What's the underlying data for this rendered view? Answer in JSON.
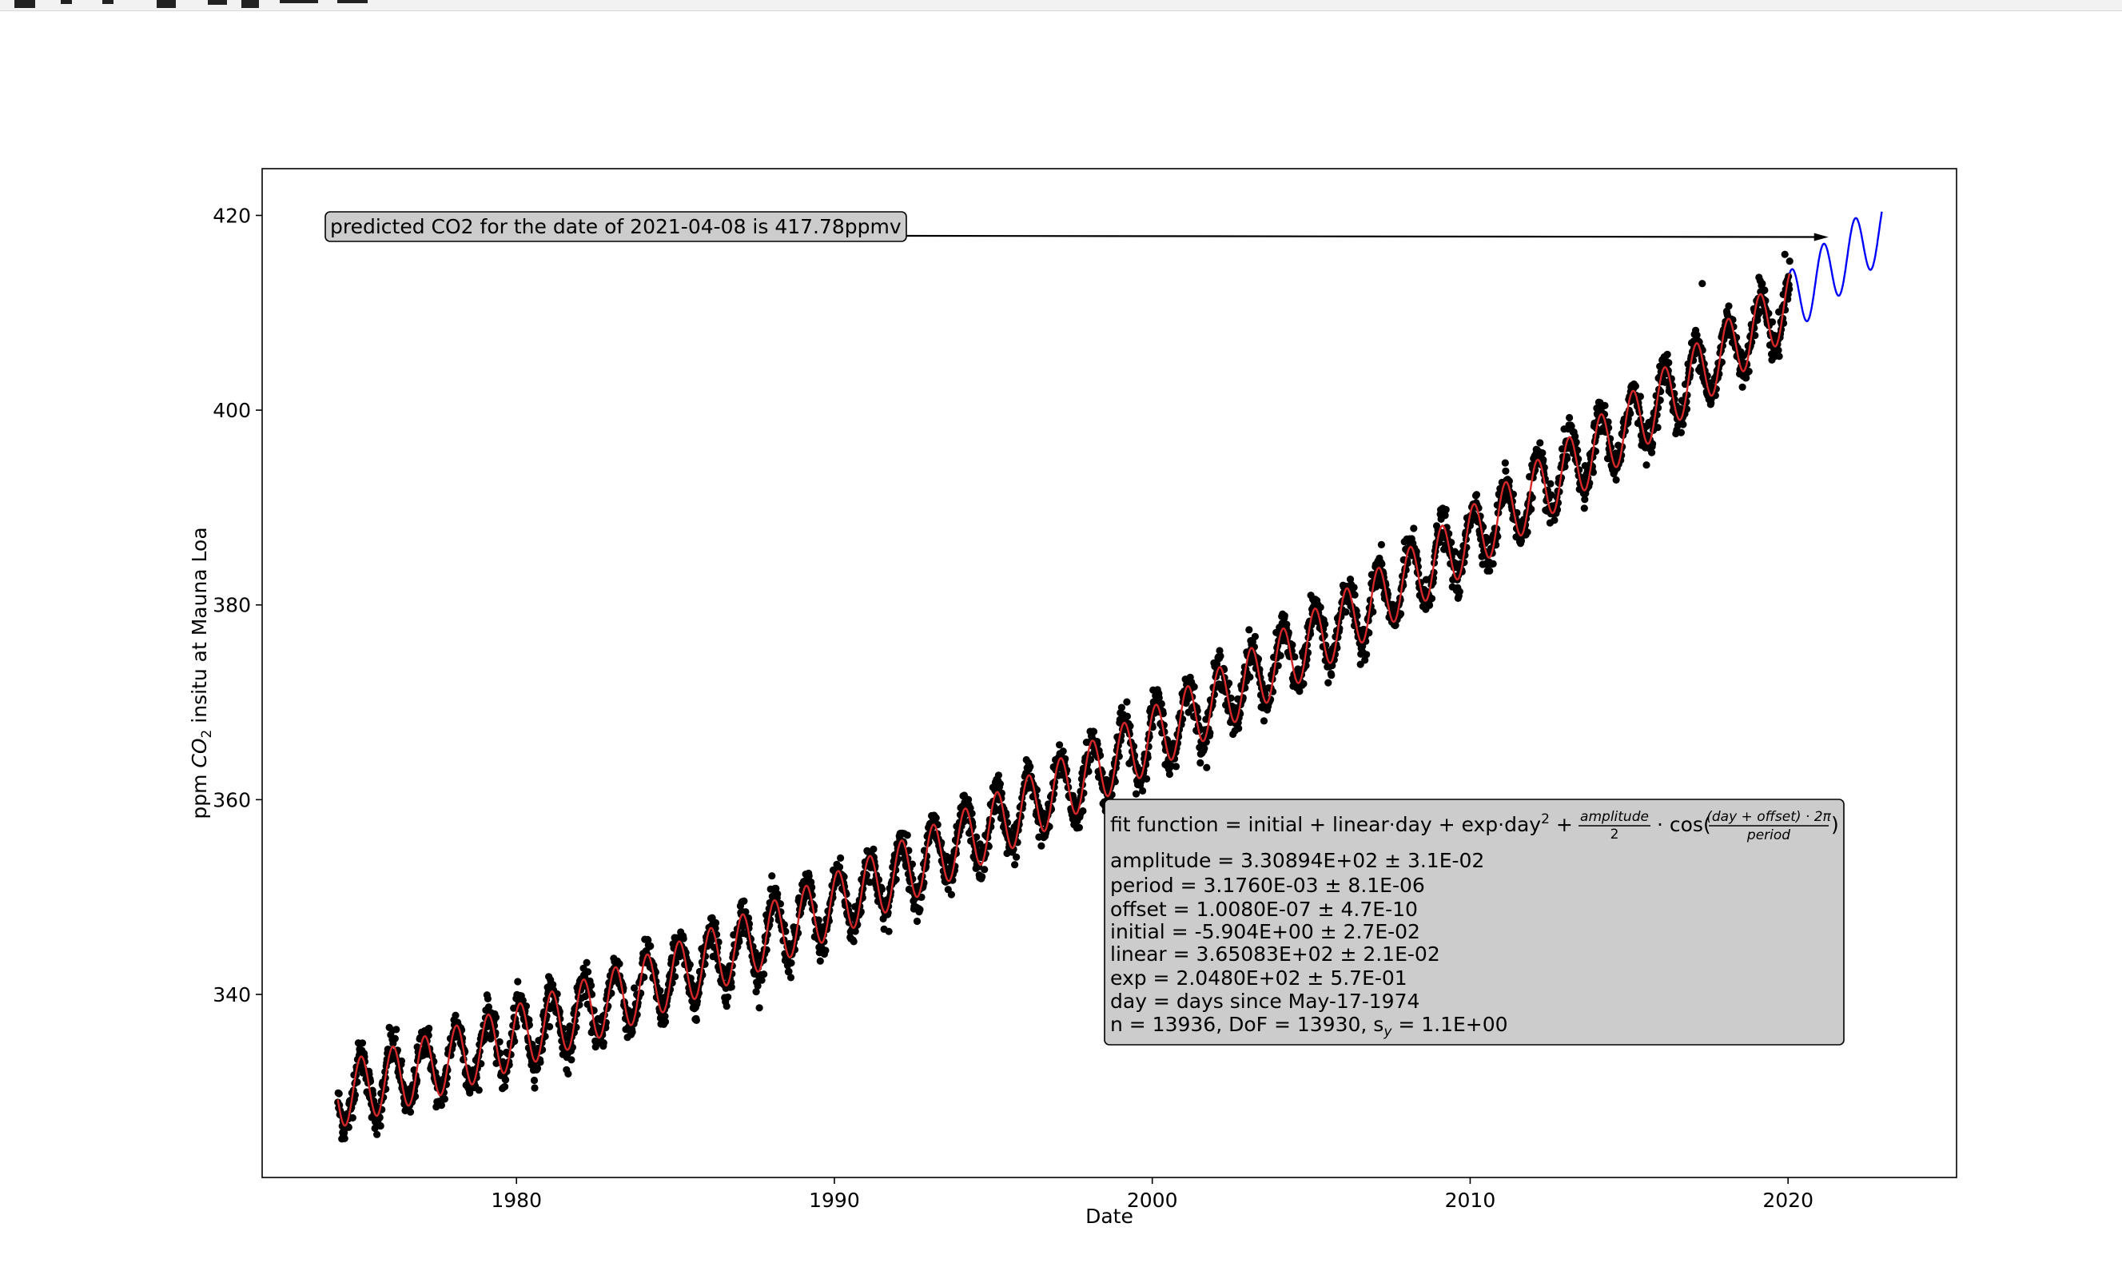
{
  "toolbar": {
    "icons": [
      "home-icon",
      "back-icon",
      "forward-icon",
      "pan-icon",
      "zoom-icon",
      "configure-subplots-icon",
      "save-icon"
    ]
  },
  "chart_data": {
    "type": "scatter",
    "title": "",
    "xlabel": "Date",
    "ylabel_prefix": "ppm ",
    "ylabel_species": "CO",
    "ylabel_sub": "2",
    "ylabel_suffix": " insitu at Mauna Loa",
    "xlim": [
      1972.0,
      2025.3
    ],
    "ylim": [
      321.2,
      424.8
    ],
    "x_ticks": [
      1980,
      1990,
      2000,
      2010,
      2020
    ],
    "y_ticks": [
      340,
      360,
      380,
      400,
      420
    ],
    "grid": false,
    "series": [
      {
        "role": "measurements",
        "color": "#000000",
        "x_range": [
          1974.38,
          2020.05
        ],
        "points": 13936,
        "trend_start": 329.6,
        "trend_end": 411.0,
        "seasonal_amplitude": 3.3
      },
      {
        "role": "fit",
        "color": "#d62728",
        "x_range": [
          1974.38,
          2020.05
        ]
      },
      {
        "role": "prediction",
        "color": "#0000ff",
        "x_range": [
          2020.05,
          2022.95
        ]
      }
    ],
    "annotations": [
      {
        "kind": "arrow",
        "text": "predicted CO2 for the date of 2021-04-08 is 417.78ppmv",
        "target_x": 2021.27,
        "target_y": 417.78
      }
    ],
    "fit_box": {
      "function_prefix": "fit function = initial + linear·day + exp·day",
      "function_power": "2",
      "function_plus": "+",
      "frac1_num": "amplitude",
      "frac1_den": "2",
      "cos_prefix": "· cos(",
      "frac2_num": "(day + offset) · 2π",
      "frac2_den": "period",
      "cos_suffix": ")",
      "lines": [
        "amplitude = 3.30894E+02 ± 3.1E-02",
        "period = 3.1760E-03 ± 8.1E-06",
        "offset = 1.0080E-07 ± 4.7E-10",
        "initial = -5.904E+00 ± 2.7E-02",
        "linear = 3.65083E+02 ± 2.1E-02",
        "exp = 2.0480E+02 ± 5.7E-01",
        "day = days since May-17-1974"
      ],
      "stats_prefix": "n = 13936, DoF = 13930, s",
      "stats_sub": "y",
      "stats_suffix": " = 1.1E+00"
    }
  }
}
